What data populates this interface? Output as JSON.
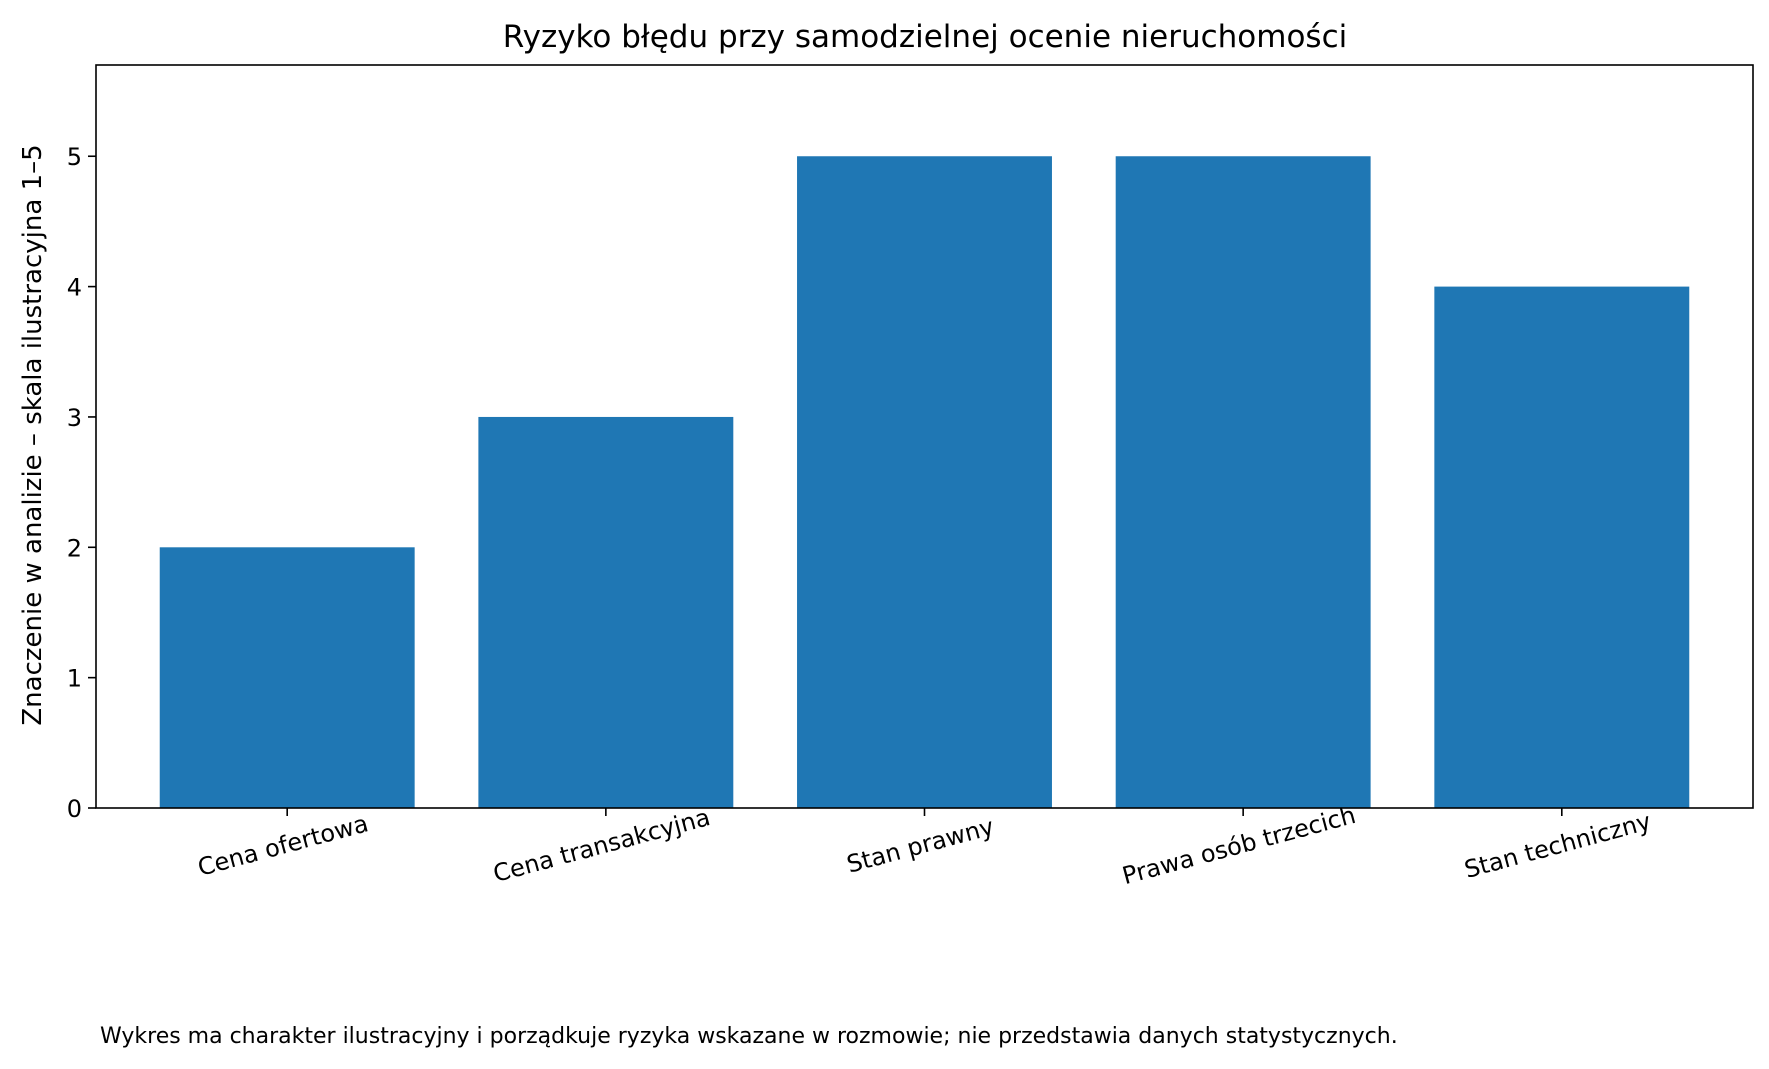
{
  "chart_data": {
    "type": "bar",
    "title": "Ryzyko błędu przy samodzielnej ocenie nieruchomości",
    "xlabel": "",
    "ylabel": "Znaczenie w analizie – skala ilustracyjna 1–5",
    "categories": [
      "Cena ofertowa",
      "Cena transakcyjna",
      "Stan prawny",
      "Prawa osób trzecich",
      "Stan techniczny"
    ],
    "values": [
      2,
      3,
      5,
      5,
      4
    ],
    "ylim": [
      0,
      5.7
    ],
    "yticks": [
      0,
      1,
      2,
      3,
      4,
      5
    ],
    "grid": false,
    "legend": null,
    "bar_color": "#1f77b4"
  },
  "footnote": "Wykres ma charakter ilustracyjny i porządkuje ryzyka wskazane w rozmowie; nie przedstawia danych statystycznych."
}
